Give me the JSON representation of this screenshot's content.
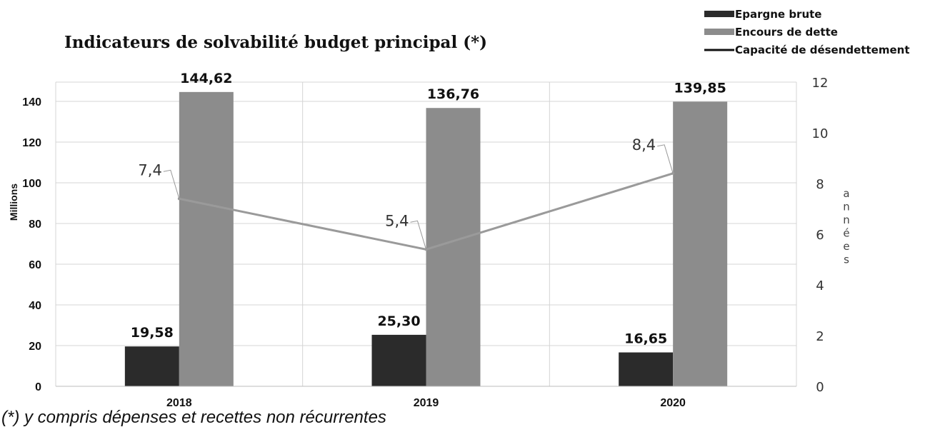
{
  "chart_data": {
    "type": "bar",
    "title": "Indicateurs de solvabilité budget principal (*)",
    "footnote": "(*) y compris dépenses et recettes non récurrentes",
    "categories": [
      "2018",
      "2019",
      "2020"
    ],
    "ylabel": "Millions",
    "y2label": "années",
    "ylim": [
      0,
      150
    ],
    "y_ticks": [
      0,
      20,
      40,
      60,
      80,
      100,
      120,
      140
    ],
    "y2lim": [
      0,
      12
    ],
    "y2_ticks": [
      0,
      2,
      4,
      6,
      8,
      10,
      12
    ],
    "grid": true,
    "legend_position": "top-right",
    "series": [
      {
        "name": "Epargne brute",
        "kind": "bar",
        "axis": "left",
        "color": "#2b2b2b",
        "values": [
          19.58,
          25.3,
          16.65
        ],
        "labels": [
          "19,58",
          "25,30",
          "16,65"
        ]
      },
      {
        "name": "Encours de dette",
        "kind": "bar",
        "axis": "left",
        "color": "#8c8c8c",
        "values": [
          144.62,
          136.76,
          139.85
        ],
        "labels": [
          "144,62",
          "136,76",
          "139,85"
        ]
      },
      {
        "name": "Capacité de désendettement",
        "kind": "line",
        "axis": "right",
        "color": "#9a9a9a",
        "values": [
          7.4,
          5.4,
          8.4
        ],
        "labels": [
          "7,4",
          "5,4",
          "8,4"
        ]
      }
    ]
  }
}
